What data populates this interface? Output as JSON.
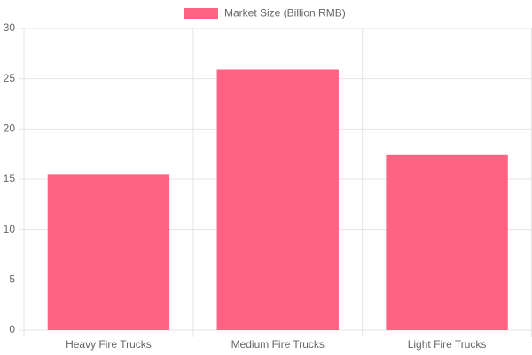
{
  "chart_data": {
    "type": "bar",
    "categories": [
      "Heavy Fire Trucks",
      "Medium Fire Trucks",
      "Light Fire Trucks"
    ],
    "series": [
      {
        "name": "Market Size (Billion RMB)",
        "color": "#ff6384",
        "values": [
          15.5,
          25.9,
          17.4
        ]
      }
    ],
    "ylim": [
      0,
      30
    ],
    "yticks": [
      0,
      5,
      10,
      15,
      20,
      25,
      30
    ],
    "grid": true,
    "legend": "top"
  }
}
